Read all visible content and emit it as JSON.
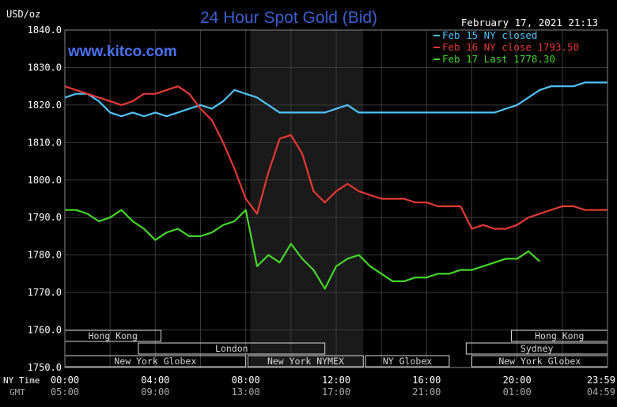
{
  "header": {
    "unit_label": "USD/oz",
    "title": "24 Hour Spot Gold (Bid)",
    "timestamp": "February 17, 2021 21:13",
    "watermark": "www.kitco.com"
  },
  "colors": {
    "background": "#000000",
    "shaded_session": "#1a1a1a",
    "grid": "#3a3a3a",
    "axis_text": "#ffffff",
    "title": "#3b5fd0",
    "watermark": "#4a6ff0",
    "feb15": "#4fc3f7",
    "feb16": "#e53935",
    "feb17": "#43d62a",
    "session_box": "#d8d8d8"
  },
  "time_axis": {
    "ny_label": "NY Time",
    "gmt_label": "GMT"
  },
  "sessions": {
    "row1": [
      {
        "label": "Hong Kong",
        "start": 0,
        "end": 4.25
      },
      {
        "label": "Hong Kong",
        "start": 19.75,
        "end": 24
      }
    ],
    "row2": [
      {
        "label": "London",
        "start": 3.25,
        "end": 11.5
      },
      {
        "label": "Sydney",
        "start": 17.75,
        "end": 24
      }
    ],
    "row3": [
      {
        "label": "New York Globex",
        "start": 0,
        "end": 8.0
      },
      {
        "label": "New York NYMEX",
        "start": 8.1,
        "end": 13.2
      },
      {
        "label": "NY Globex",
        "start": 13.3,
        "end": 17.0
      },
      {
        "label": "New York Globex",
        "start": 18.0,
        "end": 24
      }
    ]
  },
  "chart_data": {
    "type": "line",
    "title": "24 Hour Spot Gold (Bid)",
    "ylabel": "USD/oz",
    "ylim": [
      1750,
      1840
    ],
    "yticks": [
      "1840.0",
      "1830.0",
      "1820.0",
      "1810.0",
      "1800.0",
      "1790.0",
      "1780.0",
      "1770.0",
      "1760.0",
      "1750.0"
    ],
    "ytick_values": [
      1840,
      1830,
      1820,
      1810,
      1800,
      1790,
      1780,
      1770,
      1760,
      1750
    ],
    "xlim": [
      0,
      24
    ],
    "xticks_ny": [
      "00:00",
      "04:00",
      "08:00",
      "12:00",
      "16:00",
      "20:00",
      "23:59"
    ],
    "xticks_gmt": [
      "05:00",
      "09:00",
      "13:00",
      "17:00",
      "21:00",
      "01:00",
      "04:59"
    ],
    "xtick_values": [
      0,
      4,
      8,
      12,
      16,
      20,
      23.98
    ],
    "shaded_region": [
      8.2,
      13.2
    ],
    "grid": true,
    "legend_position": "top-right",
    "series": [
      {
        "name": "Feb 15 NY closed",
        "x": [
          0,
          0.5,
          1,
          1.5,
          2,
          2.5,
          3,
          3.5,
          4,
          4.5,
          5,
          5.5,
          6,
          6.5,
          7,
          7.5,
          8,
          8.5,
          9,
          9.5,
          10,
          10.5,
          11,
          11.5,
          12,
          12.5,
          13,
          14,
          15,
          16,
          17,
          18,
          18.5,
          19,
          19.5,
          20,
          20.5,
          21,
          21.5,
          22,
          22.5,
          23,
          23.5,
          24
        ],
        "y": [
          1822,
          1823,
          1823,
          1821,
          1818,
          1817,
          1818,
          1817,
          1818,
          1817,
          1818,
          1819,
          1820,
          1819,
          1821,
          1824,
          1823,
          1822,
          1820,
          1818,
          1818,
          1818,
          1818,
          1818,
          1819,
          1820,
          1818,
          1818,
          1818,
          1818,
          1818,
          1818,
          1818,
          1818,
          1819,
          1820,
          1822,
          1824,
          1825,
          1825,
          1825,
          1826,
          1826,
          1826
        ]
      },
      {
        "name": "Feb 16 NY close 1793.50",
        "x": [
          0,
          0.5,
          1,
          1.5,
          2,
          2.5,
          3,
          3.5,
          4,
          4.5,
          5,
          5.5,
          6,
          6.5,
          7,
          7.5,
          8,
          8.5,
          9,
          9.5,
          10,
          10.5,
          11,
          11.5,
          12,
          12.5,
          13,
          13.5,
          14,
          14.5,
          15,
          15.5,
          16,
          16.5,
          17,
          17.5,
          18,
          18.5,
          19,
          19.5,
          20,
          20.5,
          21,
          21.5,
          22,
          22.5,
          23,
          23.5,
          24
        ],
        "y": [
          1825,
          1824,
          1823,
          1822,
          1821,
          1820,
          1821,
          1823,
          1823,
          1824,
          1825,
          1823,
          1819,
          1816,
          1810,
          1803,
          1795,
          1791,
          1802,
          1811,
          1812,
          1807,
          1797,
          1794,
          1797,
          1799,
          1797,
          1796,
          1795,
          1795,
          1795,
          1794,
          1794,
          1793,
          1793,
          1793,
          1787,
          1788,
          1787,
          1787,
          1788,
          1790,
          1791,
          1792,
          1793,
          1793,
          1792,
          1792,
          1792
        ]
      },
      {
        "name": "Feb 17 Last 1778.30",
        "x": [
          0,
          0.5,
          1,
          1.5,
          2,
          2.5,
          3,
          3.5,
          4,
          4.5,
          5,
          5.5,
          6,
          6.5,
          7,
          7.5,
          8,
          8.5,
          9,
          9.5,
          10,
          10.5,
          11,
          11.5,
          12,
          12.5,
          13,
          13.5,
          14,
          14.5,
          15,
          15.5,
          16,
          16.5,
          17,
          17.5,
          18,
          18.5,
          19,
          19.5,
          20,
          20.5,
          21
        ],
        "y": [
          1792,
          1792,
          1791,
          1789,
          1790,
          1792,
          1789,
          1787,
          1784,
          1786,
          1787,
          1785,
          1785,
          1786,
          1788,
          1789,
          1792,
          1777,
          1780,
          1778,
          1783,
          1779,
          1776,
          1771,
          1777,
          1779,
          1780,
          1777,
          1775,
          1773,
          1773,
          1774,
          1774,
          1775,
          1775,
          1776,
          1776,
          1777,
          1778,
          1779,
          1779,
          1781,
          1778.3
        ]
      }
    ]
  }
}
